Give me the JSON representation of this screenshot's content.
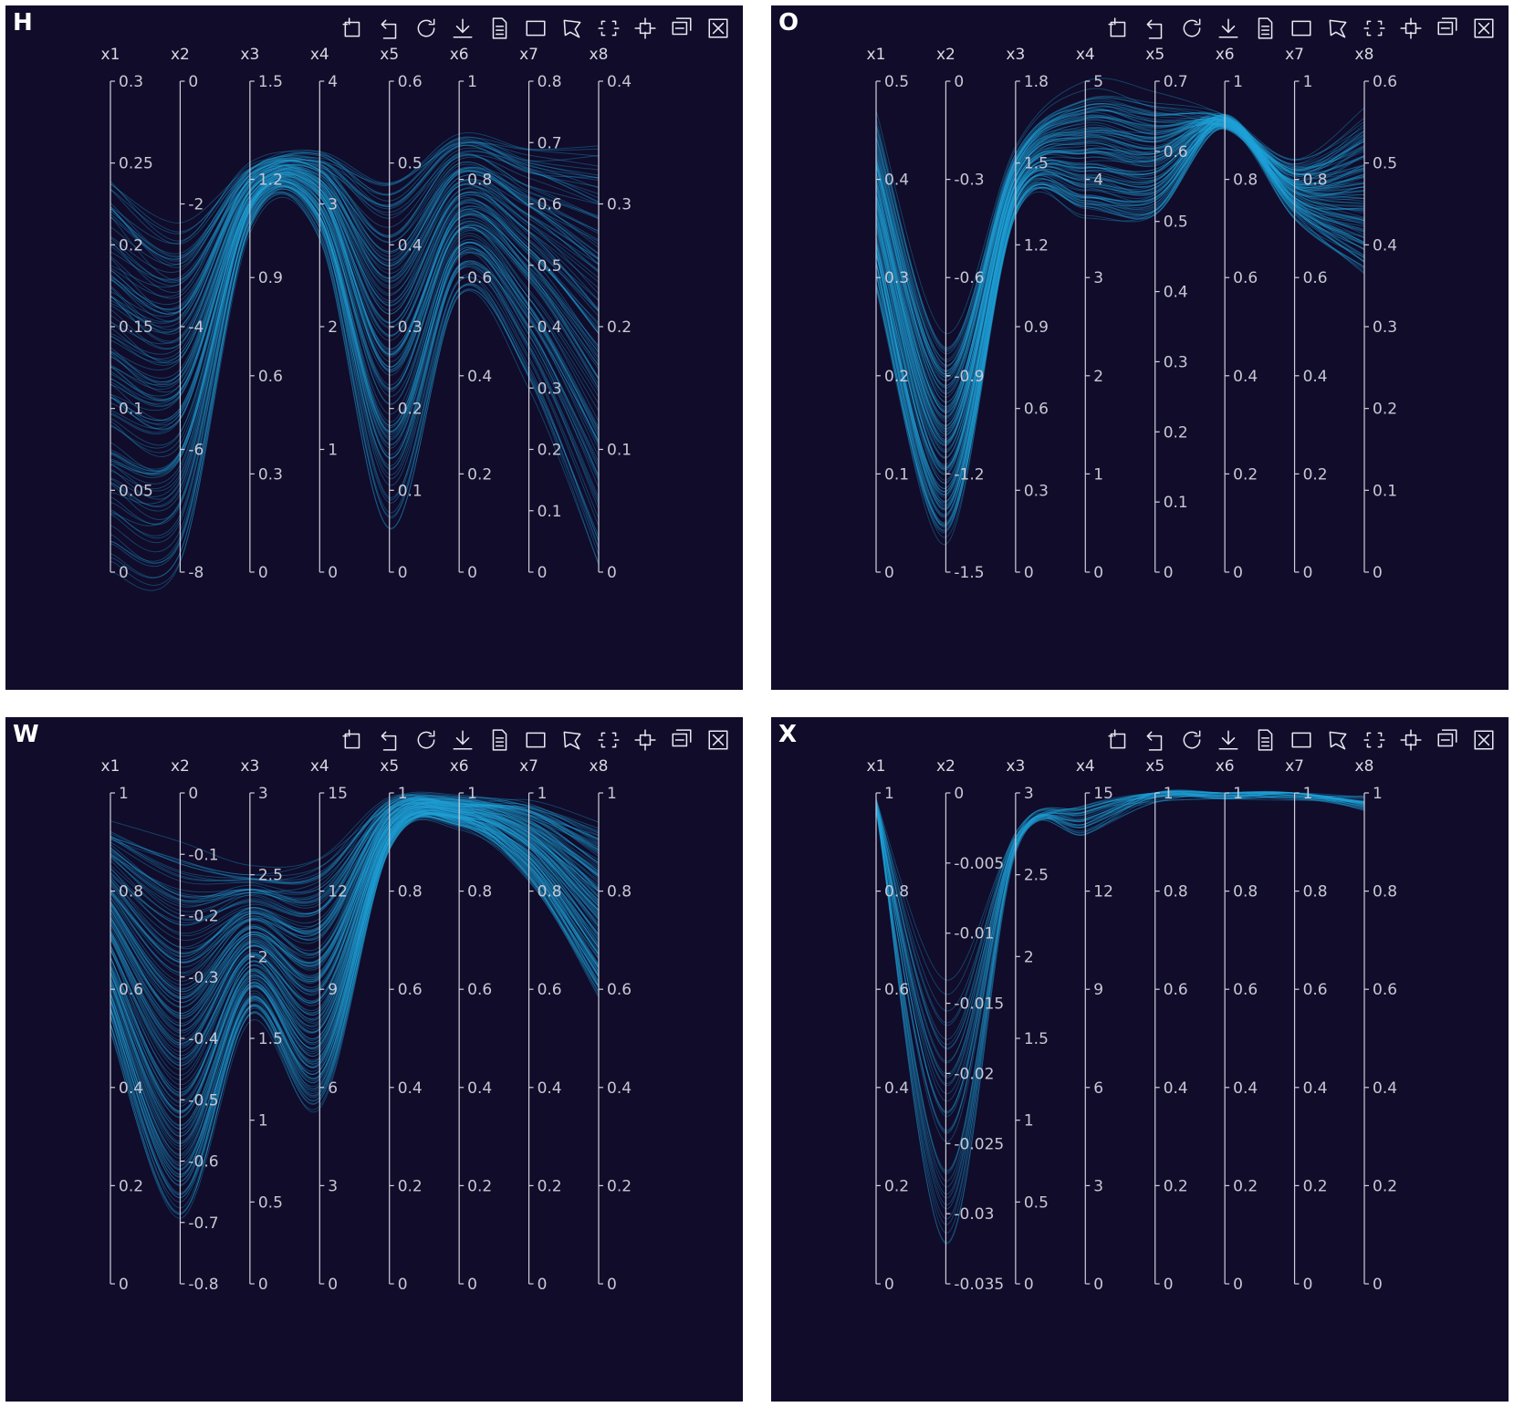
{
  "colors": {
    "background": "#100c2a",
    "line": "#1fa3d9",
    "axis": "#d0d0dc",
    "text": "#d0d0dc"
  },
  "toolbox": {
    "icons": [
      "zoom-icon",
      "zoom-reset-icon",
      "restore-icon",
      "save-image-icon",
      "data-view-icon",
      "rect-select-icon",
      "polygon-select-icon",
      "keep-select-icon",
      "clear-select-icon",
      "magic-type-icon",
      "close-icon"
    ]
  },
  "chart_data": [
    {
      "type": "parallel",
      "panel_label": "H",
      "axes": [
        {
          "name": "x1",
          "min": 0,
          "max": 0.3,
          "ticks": [
            "0",
            "0.05",
            "0.1",
            "0.15",
            "0.2",
            "0.25",
            "0.3"
          ]
        },
        {
          "name": "x2",
          "min": -8,
          "max": 0,
          "ticks": [
            "-8",
            "-6",
            "-4",
            "-2",
            "0"
          ]
        },
        {
          "name": "x3",
          "min": 0,
          "max": 1.5,
          "ticks": [
            "0",
            "0.3",
            "0.6",
            "0.9",
            "1.2",
            "1.5"
          ]
        },
        {
          "name": "x4",
          "min": 0,
          "max": 4,
          "ticks": [
            "0",
            "1",
            "2",
            "3",
            "4"
          ]
        },
        {
          "name": "x5",
          "min": 0,
          "max": 0.6,
          "ticks": [
            "0",
            "0.1",
            "0.2",
            "0.3",
            "0.4",
            "0.5",
            "0.6"
          ]
        },
        {
          "name": "x6",
          "min": 0,
          "max": 1,
          "ticks": [
            "0",
            "0.2",
            "0.4",
            "0.6",
            "0.8",
            "1"
          ]
        },
        {
          "name": "x7",
          "min": 0,
          "max": 0.8,
          "ticks": [
            "0",
            "0.1",
            "0.2",
            "0.3",
            "0.4",
            "0.5",
            "0.6",
            "0.7",
            "0.8"
          ]
        },
        {
          "name": "x8",
          "min": 0,
          "max": 0.4,
          "ticks": [
            "0",
            "0.1",
            "0.2",
            "0.3",
            "0.4"
          ]
        }
      ],
      "bands": [
        [
          0.25,
          -2.4,
          1.25,
          3.45,
          0.5,
          0.9,
          0.7,
          0.355
        ],
        [
          0.0,
          -8.0,
          1.05,
          2.75,
          0.05,
          0.55,
          0.3,
          0.0
        ],
        [
          0.02,
          -6.0,
          1.06,
          2.8,
          0.12,
          0.7,
          0.4,
          0.05
        ],
        [
          0.2,
          -2.2,
          1.2,
          3.2,
          0.4,
          0.85,
          0.68,
          0.33
        ]
      ],
      "lines": 120
    },
    {
      "type": "parallel",
      "panel_label": "O",
      "axes": [
        {
          "name": "x1",
          "min": 0,
          "max": 0.5,
          "ticks": [
            "0",
            "0.1",
            "0.2",
            "0.3",
            "0.4",
            "0.5"
          ]
        },
        {
          "name": "x2",
          "min": -1.5,
          "max": 0,
          "ticks": [
            "-1.5",
            "-1.2",
            "-0.9",
            "-0.6",
            "-0.3",
            "0"
          ]
        },
        {
          "name": "x3",
          "min": 0,
          "max": 1.8,
          "ticks": [
            "0",
            "0.3",
            "0.6",
            "0.9",
            "1.2",
            "1.5",
            "1.8"
          ]
        },
        {
          "name": "x4",
          "min": 0,
          "max": 5,
          "ticks": [
            "0",
            "1",
            "2",
            "3",
            "4",
            "5"
          ]
        },
        {
          "name": "x5",
          "min": 0,
          "max": 0.7,
          "ticks": [
            "0",
            "0.1",
            "0.2",
            "0.3",
            "0.4",
            "0.5",
            "0.6",
            "0.7"
          ]
        },
        {
          "name": "x6",
          "min": 0,
          "max": 1,
          "ticks": [
            "0",
            "0.2",
            "0.4",
            "0.6",
            "0.8",
            "1"
          ]
        },
        {
          "name": "x7",
          "min": 0,
          "max": 1,
          "ticks": [
            "0",
            "0.2",
            "0.4",
            "0.6",
            "0.8",
            "1"
          ]
        },
        {
          "name": "x8",
          "min": 0,
          "max": 0.6,
          "ticks": [
            "0",
            "0.1",
            "0.2",
            "0.3",
            "0.4",
            "0.5",
            "0.6"
          ]
        }
      ],
      "bands": [
        [
          0.47,
          -0.75,
          1.55,
          5.0,
          0.68,
          0.92,
          0.84,
          0.57
        ],
        [
          0.3,
          -1.42,
          1.3,
          3.6,
          0.5,
          0.92,
          0.72,
          0.36
        ],
        [
          0.38,
          -1.1,
          1.45,
          4.2,
          0.6,
          0.92,
          0.8,
          0.46
        ],
        [
          0.25,
          -1.3,
          1.38,
          3.9,
          0.55,
          0.9,
          0.75,
          0.4
        ]
      ],
      "lines": 120
    },
    {
      "type": "parallel",
      "panel_label": "W",
      "axes": [
        {
          "name": "x1",
          "min": 0,
          "max": 1,
          "ticks": [
            "0",
            "0.2",
            "0.4",
            "0.6",
            "0.8",
            "1"
          ]
        },
        {
          "name": "x2",
          "min": -0.8,
          "max": 0,
          "ticks": [
            "-0.8",
            "-0.7",
            "-0.6",
            "-0.5",
            "-0.4",
            "-0.3",
            "-0.2",
            "-0.1",
            "0"
          ]
        },
        {
          "name": "x3",
          "min": 0,
          "max": 3,
          "ticks": [
            "0",
            "0.5",
            "1",
            "1.5",
            "2",
            "2.5",
            "3"
          ]
        },
        {
          "name": "x4",
          "min": 0,
          "max": 15,
          "ticks": [
            "0",
            "3",
            "6",
            "9",
            "12",
            "15"
          ]
        },
        {
          "name": "x5",
          "min": 0,
          "max": 1,
          "ticks": [
            "0",
            "0.2",
            "0.4",
            "0.6",
            "0.8",
            "1"
          ]
        },
        {
          "name": "x6",
          "min": 0,
          "max": 1,
          "ticks": [
            "0",
            "0.2",
            "0.4",
            "0.6",
            "0.8",
            "1"
          ]
        },
        {
          "name": "x7",
          "min": 0,
          "max": 1,
          "ticks": [
            "0",
            "0.2",
            "0.4",
            "0.6",
            "0.8",
            "1"
          ]
        },
        {
          "name": "x8",
          "min": 0,
          "max": 1,
          "ticks": [
            "0",
            "0.2",
            "0.4",
            "0.6",
            "0.8",
            "1"
          ]
        }
      ],
      "bands": [
        [
          0.96,
          -0.05,
          2.6,
          13.5,
          0.99,
          0.99,
          0.99,
          0.96
        ],
        [
          0.5,
          -0.72,
          1.6,
          5.1,
          0.88,
          0.93,
          0.82,
          0.57
        ],
        [
          0.75,
          -0.35,
          2.0,
          9.5,
          0.95,
          0.97,
          0.9,
          0.75
        ],
        [
          0.62,
          -0.55,
          1.8,
          7.0,
          0.92,
          0.96,
          0.87,
          0.65
        ]
      ],
      "lines": 150
    },
    {
      "type": "parallel",
      "panel_label": "X",
      "axes": [
        {
          "name": "x1",
          "min": 0,
          "max": 1,
          "ticks": [
            "0",
            "0.2",
            "0.4",
            "0.6",
            "0.8",
            "1"
          ]
        },
        {
          "name": "x2",
          "min": -0.035,
          "max": 0,
          "ticks": [
            "-0.035",
            "-0.03",
            "-0.025",
            "-0.02",
            "-0.015",
            "-0.01",
            "-0.005",
            "0"
          ]
        },
        {
          "name": "x3",
          "min": 0,
          "max": 3,
          "ticks": [
            "0",
            "0.5",
            "1",
            "1.5",
            "2",
            "2.5",
            "3"
          ]
        },
        {
          "name": "x4",
          "min": 0,
          "max": 15,
          "ticks": [
            "0",
            "3",
            "6",
            "9",
            "12",
            "15"
          ]
        },
        {
          "name": "x5",
          "min": 0,
          "max": 1,
          "ticks": [
            "0",
            "0.2",
            "0.4",
            "0.6",
            "0.8",
            "1"
          ]
        },
        {
          "name": "x6",
          "min": 0,
          "max": 1,
          "ticks": [
            "0",
            "0.2",
            "0.4",
            "0.6",
            "0.8",
            "1"
          ]
        },
        {
          "name": "x7",
          "min": 0,
          "max": 1,
          "ticks": [
            "0",
            "0.2",
            "0.4",
            "0.6",
            "0.8",
            "1"
          ]
        },
        {
          "name": "x8",
          "min": 0,
          "max": 1,
          "ticks": [
            "0",
            "0.2",
            "0.4",
            "0.6",
            "0.8",
            "1"
          ]
        }
      ],
      "bands": [
        [
          0.98,
          -0.012,
          2.75,
          14.7,
          0.998,
          1.0,
          0.998,
          0.985
        ],
        [
          0.97,
          -0.033,
          2.65,
          13.8,
          0.99,
          1.0,
          0.995,
          0.975
        ],
        [
          0.975,
          -0.02,
          2.7,
          14.2,
          0.995,
          1.0,
          0.997,
          0.98
        ],
        [
          0.97,
          -0.028,
          2.68,
          14.0,
          0.993,
          1.0,
          0.996,
          0.978
        ]
      ],
      "lines": 40
    }
  ]
}
